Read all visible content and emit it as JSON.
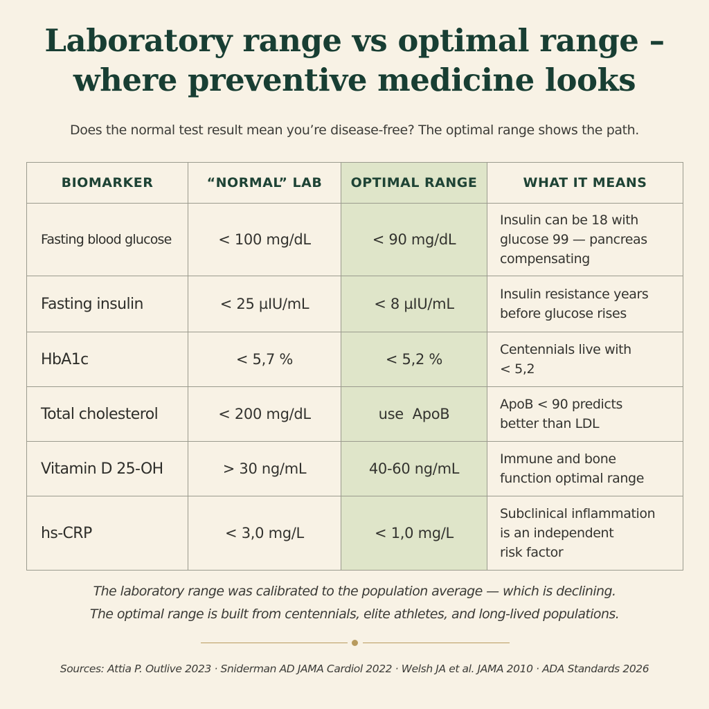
{
  "title": {
    "line1": "Laboratory range vs optimal range –",
    "line2": "where preventive medicine looks"
  },
  "subtitle": "Does the normal test result mean you’re disease-free? The optimal range shows the path.",
  "table": {
    "headers": {
      "biomarker": "BIOMARKER",
      "normal": "“NORMAL” LAB",
      "optimal": "OPTIMAL RANGE",
      "meaning": "WHAT IT MEANS"
    },
    "rows": [
      {
        "biomarker": "Fasting blood glucose",
        "normal": "< 100 mg/dL",
        "optimal": "< 90 mg/dL",
        "meaning": [
          "Insulin can be 18 with",
          "glucose 99 — pancreas",
          "compensating"
        ]
      },
      {
        "biomarker": "Fasting insulin",
        "normal": "< 25 µIU/mL",
        "optimal": "< 8 µIU/mL",
        "meaning": [
          "Insulin resistance years",
          "before glucose rises"
        ]
      },
      {
        "biomarker": "HbA1c",
        "normal": "< 5,7 %",
        "optimal": "< 5,2 %",
        "meaning": [
          "Centennials live with",
          "< 5,2"
        ]
      },
      {
        "biomarker": "Total cholesterol",
        "normal": "< 200 mg/dL",
        "optimal": "use  ApoB",
        "meaning": [
          "ApoB < 90 predicts",
          "better than LDL"
        ]
      },
      {
        "biomarker": "Vitamin D 25-OH",
        "normal": "> 30 ng/mL",
        "optimal": "40-60 ng/mL",
        "meaning": [
          "Immune and bone",
          "function optimal range"
        ]
      },
      {
        "biomarker": "hs-CRP",
        "normal": "< 3,0 mg/L",
        "optimal": "< 1,0 mg/L",
        "meaning": [
          "Subclinical inflammation",
          "is an independent",
          "risk factor"
        ]
      }
    ]
  },
  "footnote": {
    "line1": "The laboratory range was calibrated to the population average — which is declining.",
    "line2": "The optimal range is built from centennials, elite athletes, and long-lived populations."
  },
  "sources": "Sources: Attia P. Outlive 2023 · Sniderman AD JAMA Cardiol 2022 · Welsh JA et al. JAMA 2010 · ADA Standards 2026",
  "colors": {
    "background": "#f8f2e5",
    "title": "#183e33",
    "optimal_column": "#dfe5c9",
    "divider_gold": "#b89b5e"
  }
}
